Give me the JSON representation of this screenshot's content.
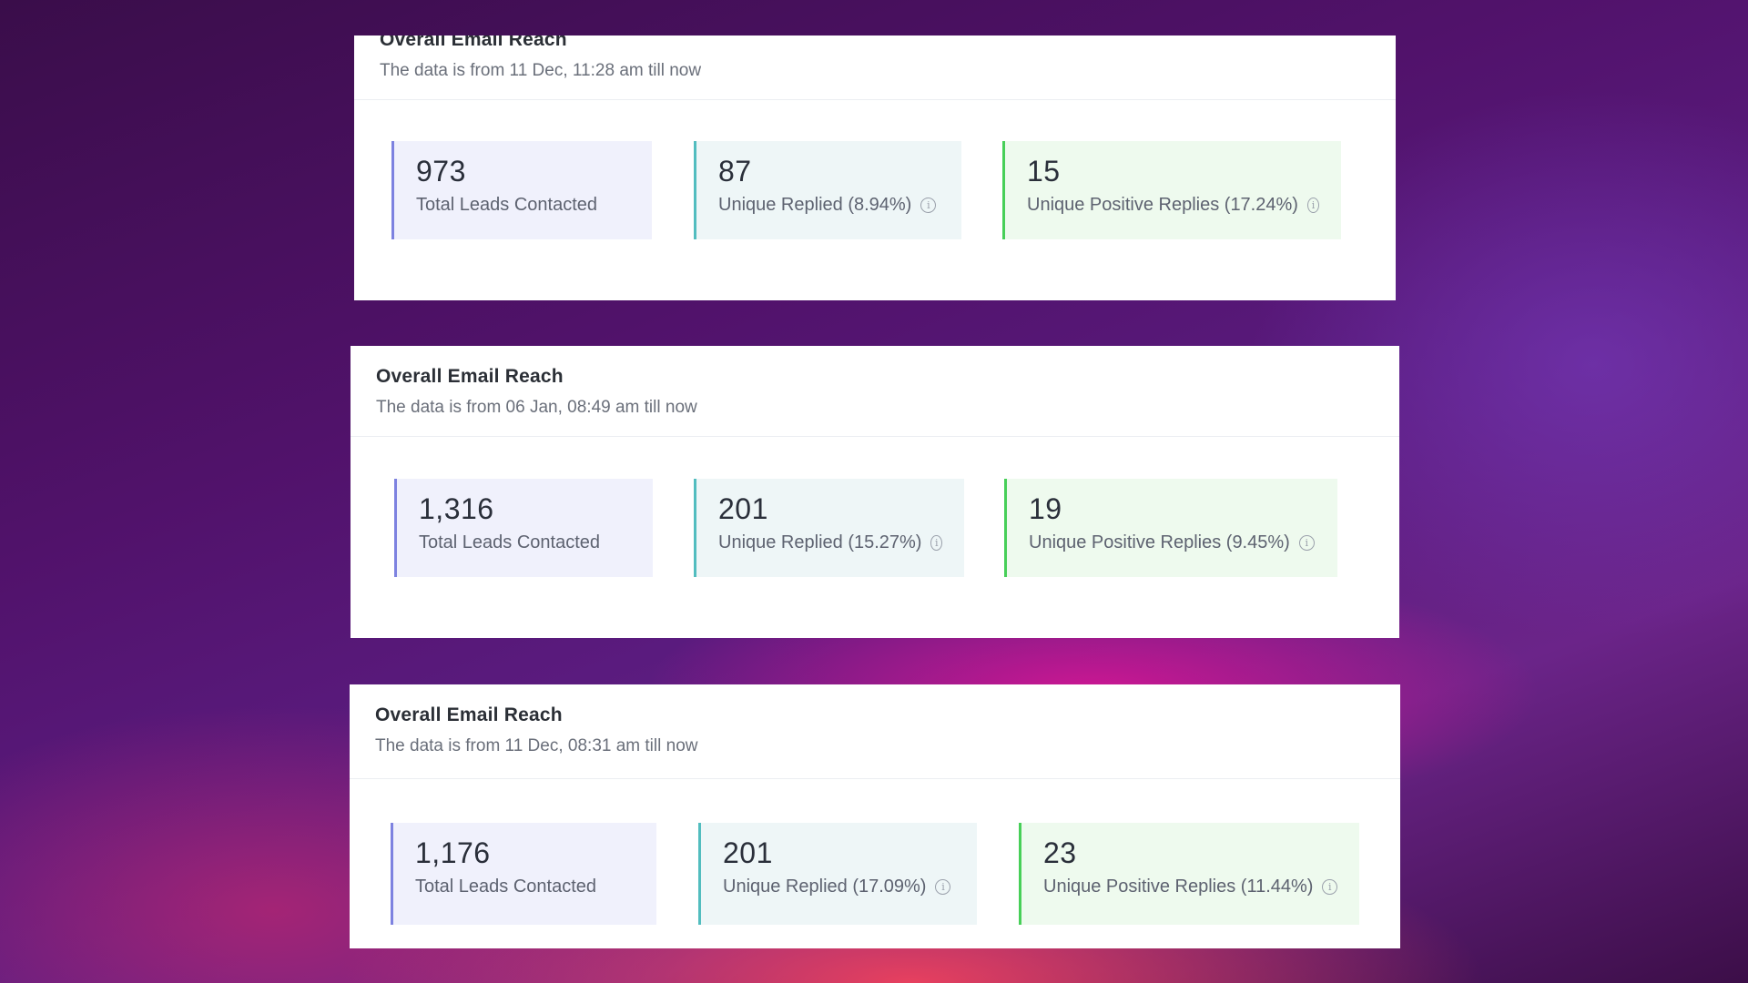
{
  "panels": [
    {
      "title": "Overall Email Reach",
      "subtitle": "The data is from 11 Dec, 11:28 am till now",
      "cards": [
        {
          "value": "973",
          "label": "Total Leads Contacted"
        },
        {
          "value": "87",
          "label": "Unique Replied (8.94%)"
        },
        {
          "value": "15",
          "label": "Unique Positive Replies (17.24%)"
        }
      ]
    },
    {
      "title": "Overall Email Reach",
      "subtitle": "The data is from 06 Jan, 08:49 am till now",
      "cards": [
        {
          "value": "1,316",
          "label": "Total Leads Contacted"
        },
        {
          "value": "201",
          "label": "Unique Replied (15.27%)"
        },
        {
          "value": "19",
          "label": "Unique Positive Replies (9.45%)"
        }
      ]
    },
    {
      "title": "Overall Email Reach",
      "subtitle": "The data is from 11 Dec, 08:31 am till now",
      "cards": [
        {
          "value": "1,176",
          "label": "Total Leads Contacted"
        },
        {
          "value": "201",
          "label": "Unique Replied (17.09%)"
        },
        {
          "value": "23",
          "label": "Unique Positive Replies (11.44%)"
        }
      ]
    }
  ],
  "icons": {
    "info": "info-icon"
  },
  "colors": {
    "leads_accent": "#7d82e0",
    "replied_accent": "#52bdbf",
    "positive_accent": "#47cf58"
  }
}
